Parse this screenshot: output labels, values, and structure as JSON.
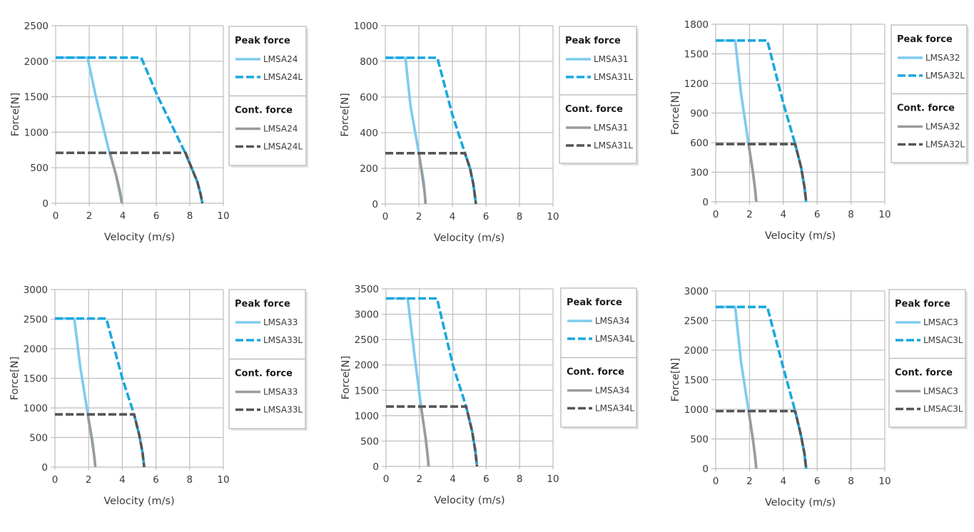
{
  "chart_data": [
    {
      "type": "line",
      "xlabel": "Velocity (m/s)",
      "ylabel": "Force[N]",
      "xlim": [
        0,
        10
      ],
      "ylim": [
        0,
        2500
      ],
      "xticks": [
        0,
        2,
        4,
        6,
        8,
        10
      ],
      "yticks": [
        0,
        500,
        1000,
        1500,
        2000,
        2500
      ],
      "grid": true,
      "legend": {
        "placement": "right",
        "groups": [
          {
            "title": "Peak force",
            "items": [
              "LMSA24",
              "LMSA24L"
            ]
          },
          {
            "title": "Cont. force",
            "items": [
              "LMSA24",
              "LMSA24L"
            ]
          }
        ]
      },
      "series": [
        {
          "name": "LMSA24",
          "group": "Peak force",
          "style": "solid",
          "color": "#7fcbee",
          "x": [
            0,
            1.9,
            2.4,
            3.2,
            3.6,
            3.95
          ],
          "y": [
            2050,
            2050,
            1500,
            720,
            400,
            0
          ]
        },
        {
          "name": "LMSA24L",
          "group": "Peak force",
          "style": "dashed",
          "color": "#19a7df",
          "x": [
            0,
            5.1,
            6.1,
            7.7,
            8.1,
            8.45,
            8.65,
            8.75
          ],
          "y": [
            2050,
            2050,
            1500,
            720,
            500,
            300,
            120,
            0
          ]
        },
        {
          "name": "LMSA24",
          "group": "Cont. force",
          "style": "solid",
          "color": "#9b9b9b",
          "x": [
            3.25,
            3.6,
            3.85,
            3.95
          ],
          "y": [
            700,
            400,
            150,
            0
          ]
        },
        {
          "name": "LMSA24L",
          "group": "Cont. force",
          "style": "dashed",
          "color": "#555555",
          "x": [
            0,
            7.75,
            8.1,
            8.45,
            8.65,
            8.75
          ],
          "y": [
            710,
            710,
            500,
            300,
            120,
            0
          ]
        }
      ]
    },
    {
      "type": "line",
      "xlabel": "Velocity (m/s)",
      "ylabel": "Force[N]",
      "xlim": [
        0,
        10
      ],
      "ylim": [
        0,
        1000
      ],
      "xticks": [
        0,
        2,
        4,
        6,
        8,
        10
      ],
      "yticks": [
        0,
        200,
        400,
        600,
        800,
        1000
      ],
      "grid": true,
      "legend": {
        "placement": "right",
        "groups": [
          {
            "title": "Peak force",
            "items": [
              "LMSA31",
              "LMSA31L"
            ]
          },
          {
            "title": "Cont. force",
            "items": [
              "LMSA31",
              "LMSA31L"
            ]
          }
        ]
      },
      "series": [
        {
          "name": "LMSA31",
          "group": "Peak force",
          "style": "solid",
          "color": "#7fcbee",
          "x": [
            0,
            1.2,
            1.5,
            2.0,
            2.3,
            2.4
          ],
          "y": [
            820,
            820,
            550,
            285,
            120,
            0
          ]
        },
        {
          "name": "LMSA31L",
          "group": "Peak force",
          "style": "dashed",
          "color": "#19a7df",
          "x": [
            0,
            3.1,
            4.0,
            4.75,
            5.05,
            5.25,
            5.35,
            5.4
          ],
          "y": [
            820,
            820,
            500,
            285,
            200,
            110,
            40,
            0
          ]
        },
        {
          "name": "LMSA31",
          "group": "Cont. force",
          "style": "solid",
          "color": "#9b9b9b",
          "x": [
            2.0,
            2.2,
            2.35,
            2.4
          ],
          "y": [
            285,
            160,
            60,
            0
          ]
        },
        {
          "name": "LMSA31L",
          "group": "Cont. force",
          "style": "dashed",
          "color": "#555555",
          "x": [
            0,
            4.75,
            5.05,
            5.25,
            5.35,
            5.4
          ],
          "y": [
            285,
            285,
            200,
            110,
            40,
            0
          ]
        }
      ]
    },
    {
      "type": "line",
      "xlabel": "Velocity (m/s)",
      "ylabel": "Force[N]",
      "xlim": [
        0,
        10
      ],
      "ylim": [
        0,
        1800
      ],
      "xticks": [
        0,
        2,
        4,
        6,
        8,
        10
      ],
      "yticks": [
        0,
        300,
        600,
        900,
        1200,
        1500,
        1800
      ],
      "grid": true,
      "legend": {
        "placement": "right",
        "groups": [
          {
            "title": "Peak force",
            "items": [
              "LMSA32",
              "LMSA32L"
            ]
          },
          {
            "title": "Cont. force",
            "items": [
              "LMSA32",
              "LMSA32L"
            ]
          }
        ]
      },
      "series": [
        {
          "name": "LMSA32",
          "group": "Peak force",
          "style": "solid",
          "color": "#7fcbee",
          "x": [
            0,
            1.15,
            1.5,
            1.95,
            2.25,
            2.4
          ],
          "y": [
            1635,
            1635,
            1100,
            580,
            250,
            0
          ]
        },
        {
          "name": "LMSA32L",
          "group": "Peak force",
          "style": "dashed",
          "color": "#19a7df",
          "x": [
            0,
            3.05,
            4.0,
            4.7,
            5.05,
            5.25,
            5.35
          ],
          "y": [
            1635,
            1635,
            1000,
            585,
            350,
            150,
            0
          ]
        },
        {
          "name": "LMSA32",
          "group": "Cont. force",
          "style": "solid",
          "color": "#9b9b9b",
          "x": [
            1.95,
            2.2,
            2.35,
            2.4
          ],
          "y": [
            580,
            300,
            100,
            0
          ]
        },
        {
          "name": "LMSA32L",
          "group": "Cont. force",
          "style": "dashed",
          "color": "#555555",
          "x": [
            0,
            4.7,
            5.05,
            5.25,
            5.35
          ],
          "y": [
            585,
            585,
            350,
            150,
            0
          ]
        }
      ]
    },
    {
      "type": "line",
      "xlabel": "Velocity (m/s)",
      "ylabel": "Force[N]",
      "xlim": [
        0,
        10
      ],
      "ylim": [
        0,
        3000
      ],
      "xticks": [
        0,
        2,
        4,
        6,
        8,
        10
      ],
      "yticks": [
        0,
        500,
        1000,
        1500,
        2000,
        2500,
        3000
      ],
      "grid": true,
      "legend": {
        "placement": "right",
        "groups": [
          {
            "title": "Peak force",
            "items": [
              "LMSA33",
              "LMSA33L"
            ]
          },
          {
            "title": "Cont. force",
            "items": [
              "LMSA33",
              "LMSA33L"
            ]
          }
        ]
      },
      "series": [
        {
          "name": "LMSA33",
          "group": "Peak force",
          "style": "solid",
          "color": "#7fcbee",
          "x": [
            0,
            1.15,
            1.5,
            1.95,
            2.25,
            2.4
          ],
          "y": [
            2510,
            2510,
            1700,
            900,
            400,
            0
          ]
        },
        {
          "name": "LMSA33L",
          "group": "Peak force",
          "style": "dashed",
          "color": "#19a7df",
          "x": [
            0,
            3.05,
            4.0,
            4.7,
            5.0,
            5.2,
            5.3
          ],
          "y": [
            2510,
            2510,
            1500,
            890,
            550,
            250,
            0
          ]
        },
        {
          "name": "LMSA33",
          "group": "Cont. force",
          "style": "solid",
          "color": "#9b9b9b",
          "x": [
            1.95,
            2.2,
            2.35,
            2.4
          ],
          "y": [
            890,
            450,
            150,
            0
          ]
        },
        {
          "name": "LMSA33L",
          "group": "Cont. force",
          "style": "dashed",
          "color": "#555555",
          "x": [
            0,
            4.7,
            5.0,
            5.2,
            5.3
          ],
          "y": [
            890,
            890,
            550,
            250,
            0
          ]
        }
      ]
    },
    {
      "type": "line",
      "xlabel": "Velocity (m/s)",
      "ylabel": "Force[N]",
      "xlim": [
        0,
        10
      ],
      "ylim": [
        0,
        3500
      ],
      "xticks": [
        0,
        2,
        4,
        6,
        8,
        10
      ],
      "yticks": [
        0,
        500,
        1000,
        1500,
        2000,
        2500,
        3000,
        3500
      ],
      "grid": true,
      "legend": {
        "placement": "right",
        "groups": [
          {
            "title": "Peak force",
            "items": [
              "LMSA34",
              "LMSA34L"
            ]
          },
          {
            "title": "Cont. force",
            "items": [
              "LMSA34",
              "LMSA34L"
            ]
          }
        ]
      },
      "series": [
        {
          "name": "LMSA34",
          "group": "Peak force",
          "style": "solid",
          "color": "#7fcbee",
          "x": [
            0,
            1.3,
            1.7,
            2.1,
            2.4,
            2.55
          ],
          "y": [
            3310,
            3310,
            2200,
            1180,
            500,
            0
          ]
        },
        {
          "name": "LMSA34L",
          "group": "Peak force",
          "style": "dashed",
          "color": "#19a7df",
          "x": [
            0,
            3.05,
            4.0,
            4.8,
            5.15,
            5.35,
            5.45
          ],
          "y": [
            3310,
            3310,
            2000,
            1180,
            700,
            300,
            0
          ]
        },
        {
          "name": "LMSA34",
          "group": "Cont. force",
          "style": "solid",
          "color": "#9b9b9b",
          "x": [
            2.1,
            2.35,
            2.5,
            2.55
          ],
          "y": [
            1180,
            600,
            200,
            0
          ]
        },
        {
          "name": "LMSA34L",
          "group": "Cont. force",
          "style": "dashed",
          "color": "#555555",
          "x": [
            0,
            4.8,
            5.15,
            5.35,
            5.45
          ],
          "y": [
            1180,
            1180,
            700,
            300,
            0
          ]
        }
      ]
    },
    {
      "type": "line",
      "xlabel": "Velocity (m/s)",
      "ylabel": "Force[N]",
      "xlim": [
        0,
        10
      ],
      "ylim": [
        0,
        3000
      ],
      "xticks": [
        0,
        2,
        4,
        6,
        8,
        10
      ],
      "yticks": [
        0,
        500,
        1000,
        1500,
        2000,
        2500,
        3000
      ],
      "grid": true,
      "legend": {
        "placement": "right",
        "groups": [
          {
            "title": "Peak force",
            "items": [
              "LMSAC3",
              "LMSAC3L"
            ]
          },
          {
            "title": "Cont. force",
            "items": [
              "LMSAC3",
              "LMSAC3L"
            ]
          }
        ]
      },
      "series": [
        {
          "name": "LMSAC3",
          "group": "Peak force",
          "style": "solid",
          "color": "#7fcbee",
          "x": [
            0,
            1.15,
            1.5,
            1.95,
            2.25,
            2.4
          ],
          "y": [
            2730,
            2730,
            1800,
            970,
            400,
            0
          ]
        },
        {
          "name": "LMSAC3L",
          "group": "Peak force",
          "style": "dashed",
          "color": "#19a7df",
          "x": [
            0,
            3.05,
            4.0,
            4.7,
            5.05,
            5.25,
            5.35
          ],
          "y": [
            2730,
            2730,
            1700,
            970,
            550,
            250,
            0
          ]
        },
        {
          "name": "LMSAC3",
          "group": "Cont. force",
          "style": "solid",
          "color": "#9b9b9b",
          "x": [
            1.95,
            2.2,
            2.35,
            2.4
          ],
          "y": [
            970,
            500,
            150,
            0
          ]
        },
        {
          "name": "LMSAC3L",
          "group": "Cont. force",
          "style": "dashed",
          "color": "#555555",
          "x": [
            0,
            4.7,
            5.05,
            5.25,
            5.35
          ],
          "y": [
            970,
            970,
            550,
            250,
            0
          ]
        }
      ]
    }
  ]
}
